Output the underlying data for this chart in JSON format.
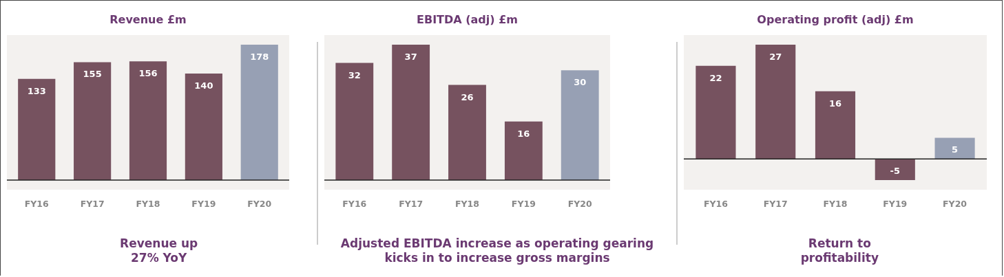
{
  "chart_data": [
    {
      "type": "bar",
      "title": "Revenue £m",
      "categories": [
        "FY16",
        "FY17",
        "FY18",
        "FY19",
        "FY20"
      ],
      "values": [
        133,
        155,
        156,
        140,
        178
      ],
      "colors": [
        "#76525f",
        "#76525f",
        "#76525f",
        "#76525f",
        "#97a0b4"
      ],
      "data_labels": true,
      "annotations": [
        "Revenue up 27% YoY"
      ]
    },
    {
      "type": "bar",
      "title": "EBITDA (adj) £m",
      "categories": [
        "FY16",
        "FY17",
        "FY18",
        "FY19",
        "FY20"
      ],
      "values": [
        32,
        37,
        26,
        16,
        30
      ],
      "colors": [
        "#76525f",
        "#76525f",
        "#76525f",
        "#76525f",
        "#97a0b4"
      ],
      "data_labels": true,
      "annotations": [
        "Adjusted EBITDA increase as operating gearing kicks in to increase gross margins"
      ]
    },
    {
      "type": "bar",
      "title": "Operating profit (adj) £m",
      "categories": [
        "FY16",
        "FY17",
        "FY18",
        "FY19",
        "FY20"
      ],
      "values": [
        22,
        27,
        16,
        -5,
        5
      ],
      "colors": [
        "#76525f",
        "#76525f",
        "#76525f",
        "#76525f",
        "#97a0b4"
      ],
      "data_labels": true,
      "annotations": [
        "Return to profitability"
      ]
    }
  ]
}
